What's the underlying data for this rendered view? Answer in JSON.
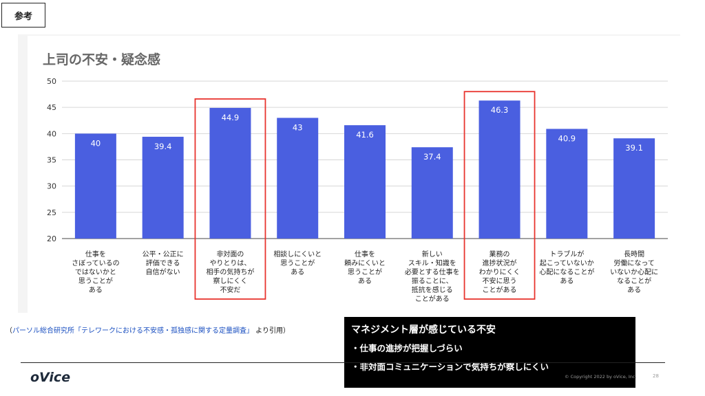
{
  "tag": "参考",
  "chart_data": {
    "type": "bar",
    "title": "上司の不安・疑念感",
    "ylim": [
      20,
      50
    ],
    "yticks": [
      20,
      25,
      30,
      35,
      40,
      45,
      50
    ],
    "grid": true,
    "bar_color": "#4a5fe0",
    "highlight_color": "#e8342e",
    "categories": [
      [
        "仕事を",
        "さぼっているの",
        "ではないかと",
        "思うことが",
        "ある"
      ],
      [
        "公平・公正に",
        "評価できる",
        "自信がない"
      ],
      [
        "非対面の",
        "やりとりは、",
        "相手の気持ちが",
        "察しにくく",
        "不安だ"
      ],
      [
        "相談しにくいと",
        "思うことが",
        "ある"
      ],
      [
        "仕事を",
        "頼みにくいと",
        "思うことが",
        "ある"
      ],
      [
        "新しい",
        "スキル・知識を",
        "必要とする仕事を",
        "振ることに、",
        "抵抗を感じる",
        "ことがある"
      ],
      [
        "業務の",
        "進捗状況が",
        "わかりにくく",
        "不安に思う",
        "ことがある"
      ],
      [
        "トラブルが",
        "起こっていないか",
        "心配になることが",
        "ある"
      ],
      [
        "長時間",
        "労働になって",
        "いないか心配に",
        "なることが",
        "ある"
      ]
    ],
    "values": [
      40,
      39.4,
      44.9,
      43,
      41.6,
      37.4,
      46.3,
      40.9,
      39.1
    ],
    "value_labels": [
      "40",
      "39.4",
      "44.9",
      "43",
      "41.6",
      "37.4",
      "46.3",
      "40.9",
      "39.1"
    ],
    "highlighted": [
      2,
      6
    ]
  },
  "source": {
    "prefix": "（",
    "link": "パーソル総合研究所「テレワークにおける不安感・孤独感に関する定量調査」",
    "suffix": " より引用）"
  },
  "callout": {
    "title": "マネジメント層が感じている不安",
    "items": [
      "・仕事の進捗が把握しづらい",
      "・非対面コミュニケーションで気持ちが察しにくい"
    ]
  },
  "footer": {
    "logo": "oVice",
    "copyright": "© Copyright 2022 by oVice, Inc.",
    "page": "28"
  }
}
